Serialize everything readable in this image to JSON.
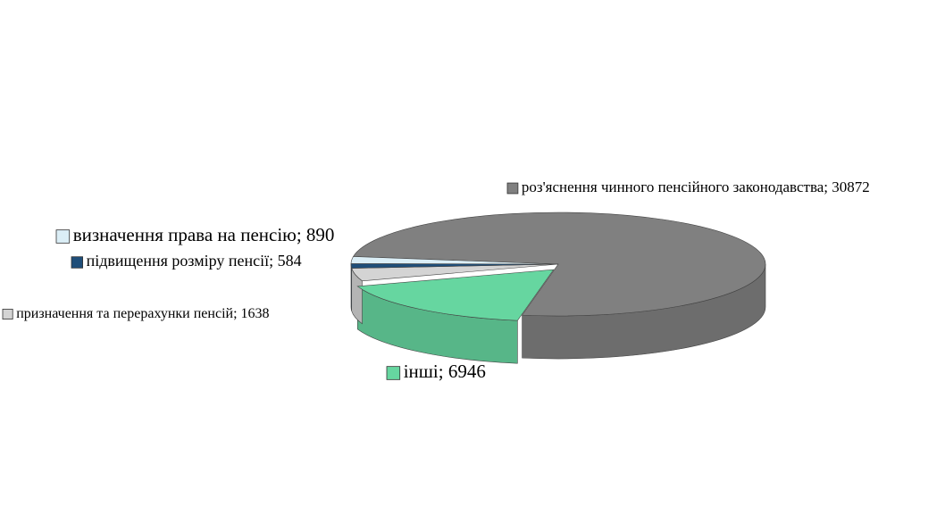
{
  "chart_data": {
    "type": "pie3d",
    "categories": [
      "роз'яснення чинного пенсійного законодавства",
      "інші",
      "призначення та перерахунки пенсій",
      "підвищення розміру пенсії",
      "визначення права на пенсію"
    ],
    "values": [
      30872,
      6946,
      1638,
      584,
      890
    ],
    "value_labels": [
      "; 30872",
      "; 6946",
      "; 1638",
      "; 584",
      "; 890"
    ],
    "colors": [
      "#808080",
      "#66d6a0",
      "#d4d4d4",
      "#1f4e79",
      "#dbeef6"
    ]
  }
}
